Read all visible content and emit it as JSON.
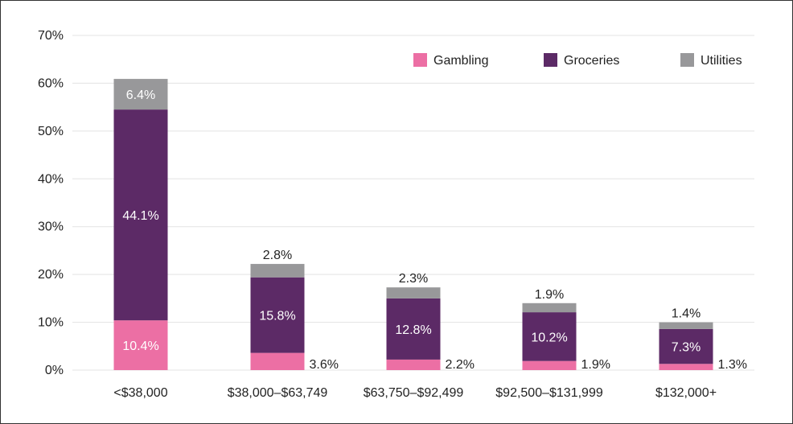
{
  "chart_data": {
    "type": "bar",
    "stacked": true,
    "categories": [
      "<$38,000",
      "$38,000–$63,749",
      "$63,750–$92,499",
      "$92,500–$131,999",
      "$132,000+"
    ],
    "series": [
      {
        "name": "Gambling",
        "color": "#ec6fa4",
        "values": [
          10.4,
          3.6,
          2.2,
          1.9,
          1.3
        ],
        "labels": [
          "10.4%",
          "3.6%",
          "2.2%",
          "1.9%",
          "1.3%"
        ]
      },
      {
        "name": "Groceries",
        "color": "#5c2a66",
        "values": [
          44.1,
          15.8,
          12.8,
          10.2,
          7.3
        ],
        "labels": [
          "44.1%",
          "15.8%",
          "12.8%",
          "10.2%",
          "7.3%"
        ]
      },
      {
        "name": "Utilities",
        "color": "#98989a",
        "values": [
          6.4,
          2.8,
          2.3,
          1.9,
          1.4
        ],
        "labels": [
          "6.4%",
          "2.8%",
          "2.3%",
          "1.9%",
          "1.4%"
        ]
      }
    ],
    "ylim": [
      0,
      70
    ],
    "yticks": [
      "0%",
      "10%",
      "20%",
      "30%",
      "40%",
      "50%",
      "60%",
      "70%"
    ],
    "grid": true,
    "legend_position": "top-right",
    "gridline_color": "#e3e3e3"
  }
}
